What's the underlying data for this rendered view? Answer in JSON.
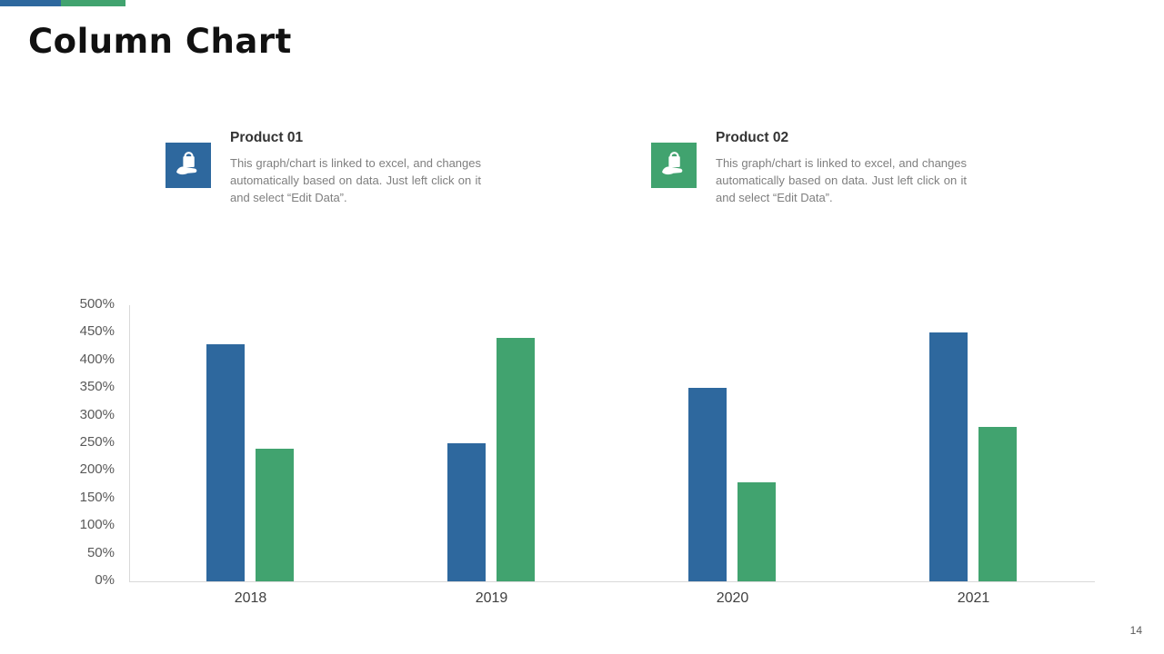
{
  "page": {
    "title": "Column Chart",
    "page_number": "14"
  },
  "accent": {
    "blue": "#2e689e",
    "green": "#41a36f"
  },
  "products": [
    {
      "name": "Product 01",
      "description": "This graph/chart is linked to excel, and changes automatically based on data. Just left click on it and select “Edit Data”.",
      "icon": "hand-holding-bag-icon",
      "color": "#2e689e"
    },
    {
      "name": "Product 02",
      "description": "This graph/chart is linked to excel, and changes automatically based on data. Just left click on it and select “Edit Data”.",
      "icon": "hand-holding-bag-icon",
      "color": "#41a36f"
    }
  ],
  "chart_data": {
    "type": "bar",
    "categories": [
      "2018",
      "2019",
      "2020",
      "2021"
    ],
    "series": [
      {
        "name": "Product 01",
        "color": "#2e689e",
        "values": [
          430,
          250,
          350,
          450
        ]
      },
      {
        "name": "Product 02",
        "color": "#41a36f",
        "values": [
          240,
          440,
          180,
          280
        ]
      }
    ],
    "title": "",
    "xlabel": "",
    "ylabel": "",
    "ylim": [
      0,
      500
    ],
    "ytick_step": 50,
    "ytick_suffix": "%",
    "grid": false,
    "legend": "none"
  }
}
